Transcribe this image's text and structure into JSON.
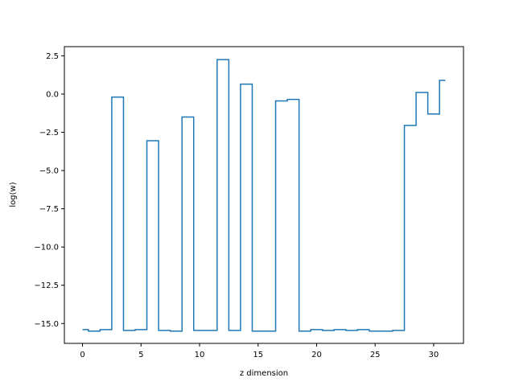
{
  "chart_data": {
    "type": "line",
    "drawstyle": "steps-mid",
    "xlabel": "z dimension",
    "ylabel": "log(w)",
    "xlim": [
      -1.55,
      32.55
    ],
    "ylim": [
      -16.3,
      3.1
    ],
    "xticks": [
      0,
      5,
      10,
      15,
      20,
      25,
      30
    ],
    "xtick_labels": [
      "0",
      "5",
      "10",
      "15",
      "20",
      "25",
      "30"
    ],
    "yticks": [
      2.5,
      0.0,
      -2.5,
      -5.0,
      -7.5,
      -10.0,
      -12.5,
      -15.0
    ],
    "ytick_labels": [
      "2.5",
      "0.0",
      "−2.5",
      "−5.0",
      "−7.5",
      "−10.0",
      "−12.5",
      "−15.0"
    ],
    "grid": false,
    "series": [
      {
        "color": "#1f77b4",
        "x": [
          0,
          1,
          2,
          3,
          4,
          5,
          6,
          7,
          8,
          9,
          10,
          11,
          12,
          13,
          14,
          15,
          16,
          17,
          18,
          19,
          20,
          21,
          22,
          23,
          24,
          25,
          26,
          27,
          28,
          29,
          30,
          31
        ],
        "y": [
          -15.4,
          -15.5,
          -15.4,
          -0.2,
          -15.45,
          -15.4,
          -3.05,
          -15.45,
          -15.5,
          -1.5,
          -15.45,
          -15.45,
          2.25,
          -15.45,
          0.65,
          -15.5,
          -15.5,
          -0.45,
          -0.35,
          -15.5,
          -15.4,
          -15.45,
          -15.4,
          -15.45,
          -15.4,
          -15.5,
          -15.5,
          -15.45,
          -2.05,
          0.1,
          -1.3,
          0.9
        ]
      }
    ]
  }
}
